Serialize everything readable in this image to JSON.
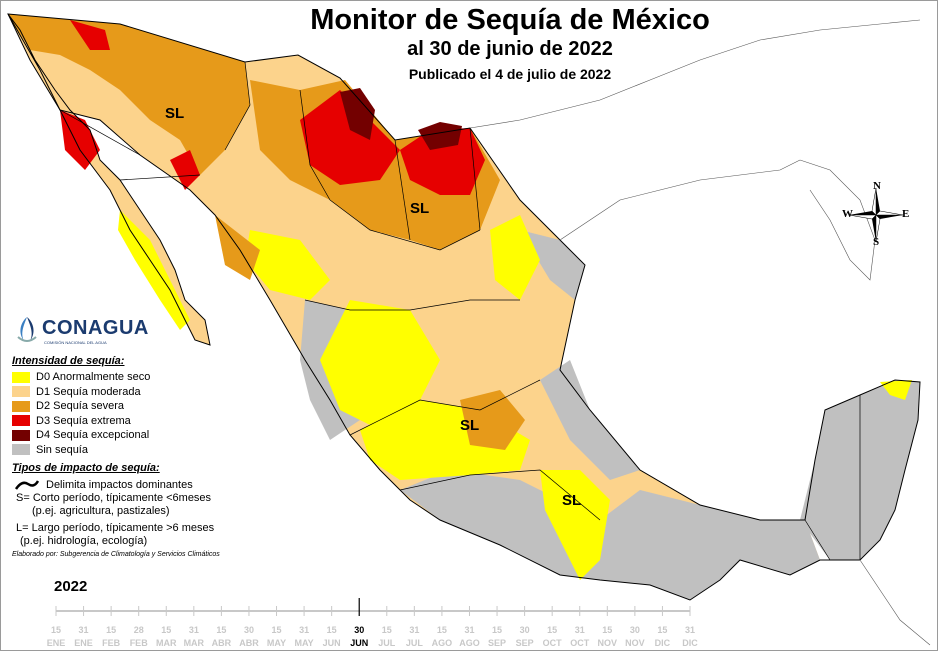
{
  "header": {
    "title": "Monitor de Sequía de México",
    "date_line": "al 30 de junio de 2022",
    "published": "Publicado el 4 de julio de 2022"
  },
  "compass": {
    "n": "N",
    "s": "S",
    "e": "E",
    "w": "W"
  },
  "logo": {
    "name": "CONAGUA",
    "subtitle": "COMISIÓN NACIONAL DEL AGUA"
  },
  "map_labels": [
    "SL",
    "SL",
    "SL",
    "SL"
  ],
  "colors": {
    "D0": "#ffff00",
    "D1": "#fcd38c",
    "D2": "#e69a1a",
    "D3": "#e60000",
    "D4": "#730000",
    "none": "#c0c0c0",
    "water": "#ffffff",
    "border": "#000000"
  },
  "legend": {
    "intensity_title": "Intensidad de sequía:",
    "levels": [
      {
        "label": "D0 Anormalmente seco",
        "color": "#ffff00"
      },
      {
        "label": "D1 Sequía moderada",
        "color": "#fcd38c"
      },
      {
        "label": "D2 Sequía severa",
        "color": "#e69a1a"
      },
      {
        "label": "D3 Sequía extrema",
        "color": "#e60000"
      },
      {
        "label": "D4 Sequía excepcional",
        "color": "#730000"
      },
      {
        "label": "Sin sequía",
        "color": "#c0c0c0"
      }
    ],
    "impact_title": "Tipos de impacto de sequía:",
    "impact_line": "Delimita impactos dominantes",
    "short_term": "S= Corto período, típicamente <6meses",
    "short_term_ex": "(p.ej. agricultura, pastizales)",
    "long_term": "L= Largo período, típicamente >6 meses",
    "long_term_ex": "(p.ej. hidrología, ecología)",
    "credit": "Elaborado por: Subgerencia de Climatología y Servicios Climáticos"
  },
  "timeline": {
    "year": "2022",
    "ticks": [
      {
        "day": "15",
        "month": "ENE"
      },
      {
        "day": "31",
        "month": "ENE"
      },
      {
        "day": "15",
        "month": "FEB"
      },
      {
        "day": "28",
        "month": "FEB"
      },
      {
        "day": "15",
        "month": "MAR"
      },
      {
        "day": "31",
        "month": "MAR"
      },
      {
        "day": "15",
        "month": "ABR"
      },
      {
        "day": "30",
        "month": "ABR"
      },
      {
        "day": "15",
        "month": "MAY"
      },
      {
        "day": "31",
        "month": "MAY"
      },
      {
        "day": "15",
        "month": "JUN"
      },
      {
        "day": "30",
        "month": "JUN"
      },
      {
        "day": "15",
        "month": "JUL"
      },
      {
        "day": "31",
        "month": "JUL"
      },
      {
        "day": "15",
        "month": "AGO"
      },
      {
        "day": "31",
        "month": "AGO"
      },
      {
        "day": "15",
        "month": "SEP"
      },
      {
        "day": "30",
        "month": "SEP"
      },
      {
        "day": "15",
        "month": "OCT"
      },
      {
        "day": "31",
        "month": "OCT"
      },
      {
        "day": "15",
        "month": "NOV"
      },
      {
        "day": "30",
        "month": "NOV"
      },
      {
        "day": "15",
        "month": "DIC"
      },
      {
        "day": "31",
        "month": "DIC"
      }
    ],
    "current_index": 11
  }
}
